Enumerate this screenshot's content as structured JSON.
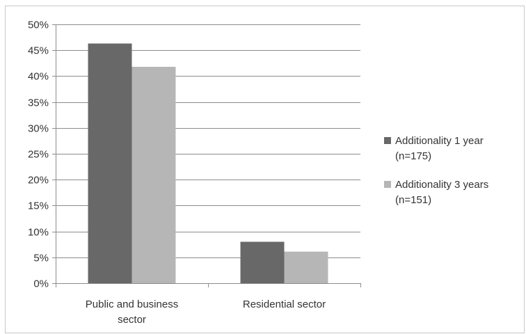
{
  "chart_data": {
    "type": "bar",
    "categories": [
      "Public and business sector",
      "Residential sector"
    ],
    "category_label_lines": [
      [
        "Public and business",
        "sector"
      ],
      [
        "Residential sector"
      ]
    ],
    "series": [
      {
        "name": "Additionality 1 year (n=175)",
        "legend_lines": [
          "Additionality 1 year",
          "(n=175)"
        ],
        "values": [
          46.3,
          8.0
        ],
        "color": "#686868"
      },
      {
        "name": "Additionality 3 years (n=151)",
        "legend_lines": [
          "Additionality 3 years",
          "(n=151)"
        ],
        "values": [
          41.8,
          6.1
        ],
        "color": "#b6b6b6"
      }
    ],
    "ylim": [
      0,
      50
    ],
    "yticks": [
      0,
      5,
      10,
      15,
      20,
      25,
      30,
      35,
      40,
      45,
      50
    ],
    "ytick_labels": [
      "0%",
      "5%",
      "10%",
      "15%",
      "20%",
      "25%",
      "30%",
      "35%",
      "40%",
      "45%",
      "50%"
    ],
    "grid": true,
    "legend_position": "right",
    "title": "",
    "xlabel": "",
    "ylabel": ""
  }
}
